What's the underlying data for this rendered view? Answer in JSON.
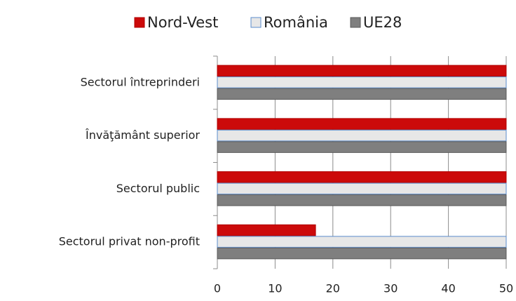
{
  "chart_data": {
    "type": "barh",
    "categories": [
      "Sectorul întreprinderi",
      "Învăţământ superior",
      "Sectorul public",
      "Sectorul privat non-profit"
    ],
    "series": [
      {
        "name": "Nord-Vest",
        "color": "#cc0a0a",
        "edgecolor": "#b00000",
        "values": [
          50,
          50,
          50,
          17
        ]
      },
      {
        "name": "România",
        "color": "#e7e7e7",
        "edgecolor": "#5b8ccc",
        "values": [
          50,
          50,
          50,
          50
        ]
      },
      {
        "name": "UE28",
        "color": "#7f7f7f",
        "edgecolor": "#595959",
        "values": [
          50,
          50,
          50,
          50
        ]
      }
    ],
    "xlim": [
      0,
      50
    ],
    "xticks": [
      0,
      10,
      20,
      30,
      40,
      50
    ],
    "grid": true,
    "legend": "top"
  }
}
